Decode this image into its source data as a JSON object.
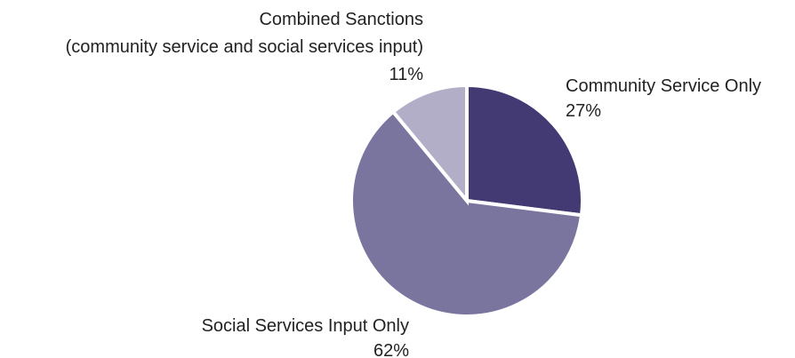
{
  "chart_data": {
    "type": "pie",
    "start_angle_deg": 0,
    "direction": "clockwise",
    "slices": [
      {
        "label": "Community Service Only",
        "percent_label": "27%",
        "value": 27,
        "color": "#433a74"
      },
      {
        "label": "Social Services Input Only",
        "percent_label": "62%",
        "value": 62,
        "color": "#7a759f"
      },
      {
        "label_lines": [
          "Combined Sanctions",
          "(community service and social services input)"
        ],
        "percent_label": "11%",
        "value": 11,
        "color": "#b2aec8"
      }
    ],
    "separator_color": "#ffffff"
  }
}
